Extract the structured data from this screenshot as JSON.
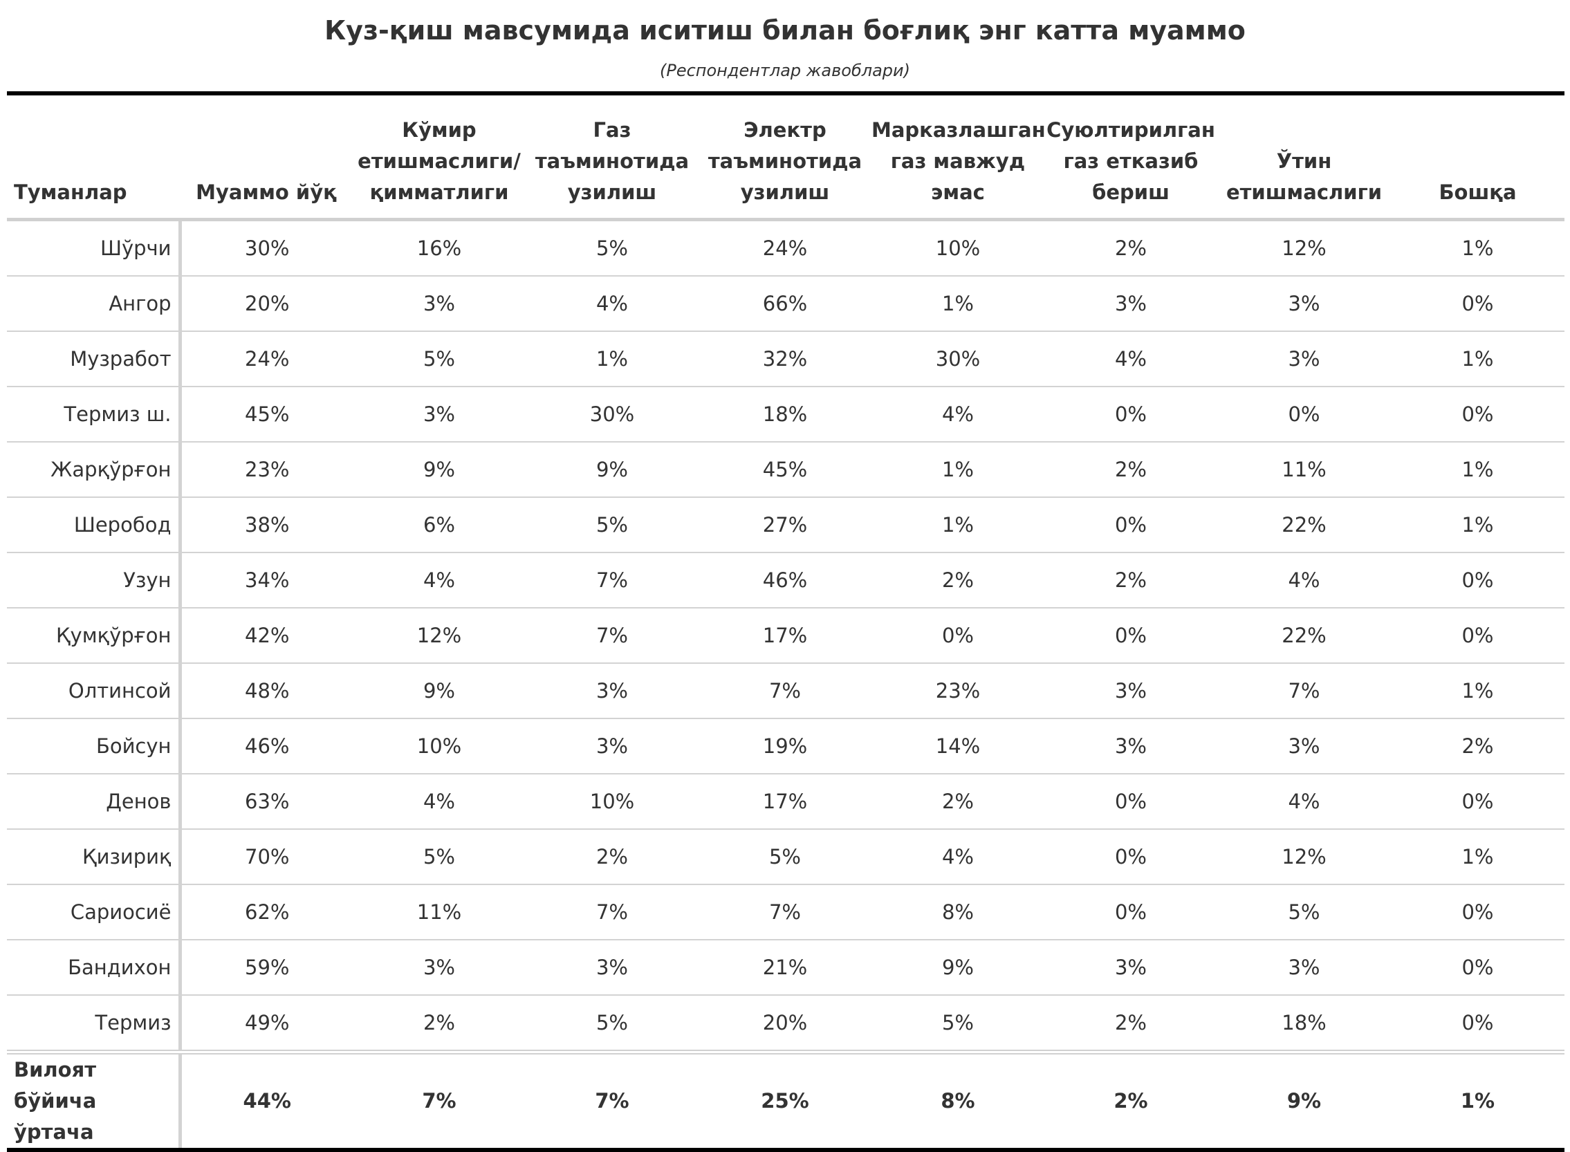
{
  "title": "Куз-қиш мавсумида иситиш билан боғлиқ энг катта муаммо",
  "subtitle": "(Респондентлар жавоблари)",
  "chart_data": {
    "type": "table",
    "columns": [
      {
        "lines": [
          "Туманлар"
        ]
      },
      {
        "lines": [
          "Муаммо йўқ"
        ]
      },
      {
        "lines": [
          "Кўмир",
          "етишмаслиги/",
          "қимматлиги"
        ]
      },
      {
        "lines": [
          "Газ",
          "таъминотида",
          "узилиш"
        ]
      },
      {
        "lines": [
          "Электр",
          "таъминотида",
          "узилиш"
        ]
      },
      {
        "lines": [
          "Марказлашган",
          "газ мавжуд",
          "эмас"
        ]
      },
      {
        "lines": [
          "Суюлтирилган",
          "газ етказиб",
          "бериш"
        ]
      },
      {
        "lines": [
          "Ўтин",
          "етишмаслиги"
        ]
      },
      {
        "lines": [
          "Бошқа"
        ]
      }
    ],
    "rows": [
      {
        "district": "Шўрчи",
        "values": [
          "30%",
          "16%",
          "5%",
          "24%",
          "10%",
          "2%",
          "12%",
          "1%"
        ]
      },
      {
        "district": "Ангор",
        "values": [
          "20%",
          "3%",
          "4%",
          "66%",
          "1%",
          "3%",
          "3%",
          "0%"
        ]
      },
      {
        "district": "Музработ",
        "values": [
          "24%",
          "5%",
          "1%",
          "32%",
          "30%",
          "4%",
          "3%",
          "1%"
        ]
      },
      {
        "district": "Термиз ш.",
        "values": [
          "45%",
          "3%",
          "30%",
          "18%",
          "4%",
          "0%",
          "0%",
          "0%"
        ]
      },
      {
        "district": "Жарқўрғон",
        "values": [
          "23%",
          "9%",
          "9%",
          "45%",
          "1%",
          "2%",
          "11%",
          "1%"
        ]
      },
      {
        "district": "Шеробод",
        "values": [
          "38%",
          "6%",
          "5%",
          "27%",
          "1%",
          "0%",
          "22%",
          "1%"
        ]
      },
      {
        "district": "Узун",
        "values": [
          "34%",
          "4%",
          "7%",
          "46%",
          "2%",
          "2%",
          "4%",
          "0%"
        ]
      },
      {
        "district": "Қумқўрғон",
        "values": [
          "42%",
          "12%",
          "7%",
          "17%",
          "0%",
          "0%",
          "22%",
          "0%"
        ]
      },
      {
        "district": "Олтинсой",
        "values": [
          "48%",
          "9%",
          "3%",
          "7%",
          "23%",
          "3%",
          "7%",
          "1%"
        ]
      },
      {
        "district": "Бойсун",
        "values": [
          "46%",
          "10%",
          "3%",
          "19%",
          "14%",
          "3%",
          "3%",
          "2%"
        ]
      },
      {
        "district": "Денов",
        "values": [
          "63%",
          "4%",
          "10%",
          "17%",
          "2%",
          "0%",
          "4%",
          "0%"
        ]
      },
      {
        "district": "Қизириқ",
        "values": [
          "70%",
          "5%",
          "2%",
          "5%",
          "4%",
          "0%",
          "12%",
          "1%"
        ]
      },
      {
        "district": "Сариосиё",
        "values": [
          "62%",
          "11%",
          "7%",
          "7%",
          "8%",
          "0%",
          "5%",
          "0%"
        ]
      },
      {
        "district": "Бандихон",
        "values": [
          "59%",
          "3%",
          "3%",
          "21%",
          "9%",
          "3%",
          "3%",
          "0%"
        ]
      },
      {
        "district": "Термиз",
        "values": [
          "49%",
          "2%",
          "5%",
          "20%",
          "5%",
          "2%",
          "18%",
          "0%"
        ]
      }
    ],
    "summary": {
      "label_lines": [
        "Вилоят",
        "бўйича ўртача"
      ],
      "values": [
        "44%",
        "7%",
        "7%",
        "25%",
        "8%",
        "2%",
        "9%",
        "1%"
      ]
    }
  }
}
